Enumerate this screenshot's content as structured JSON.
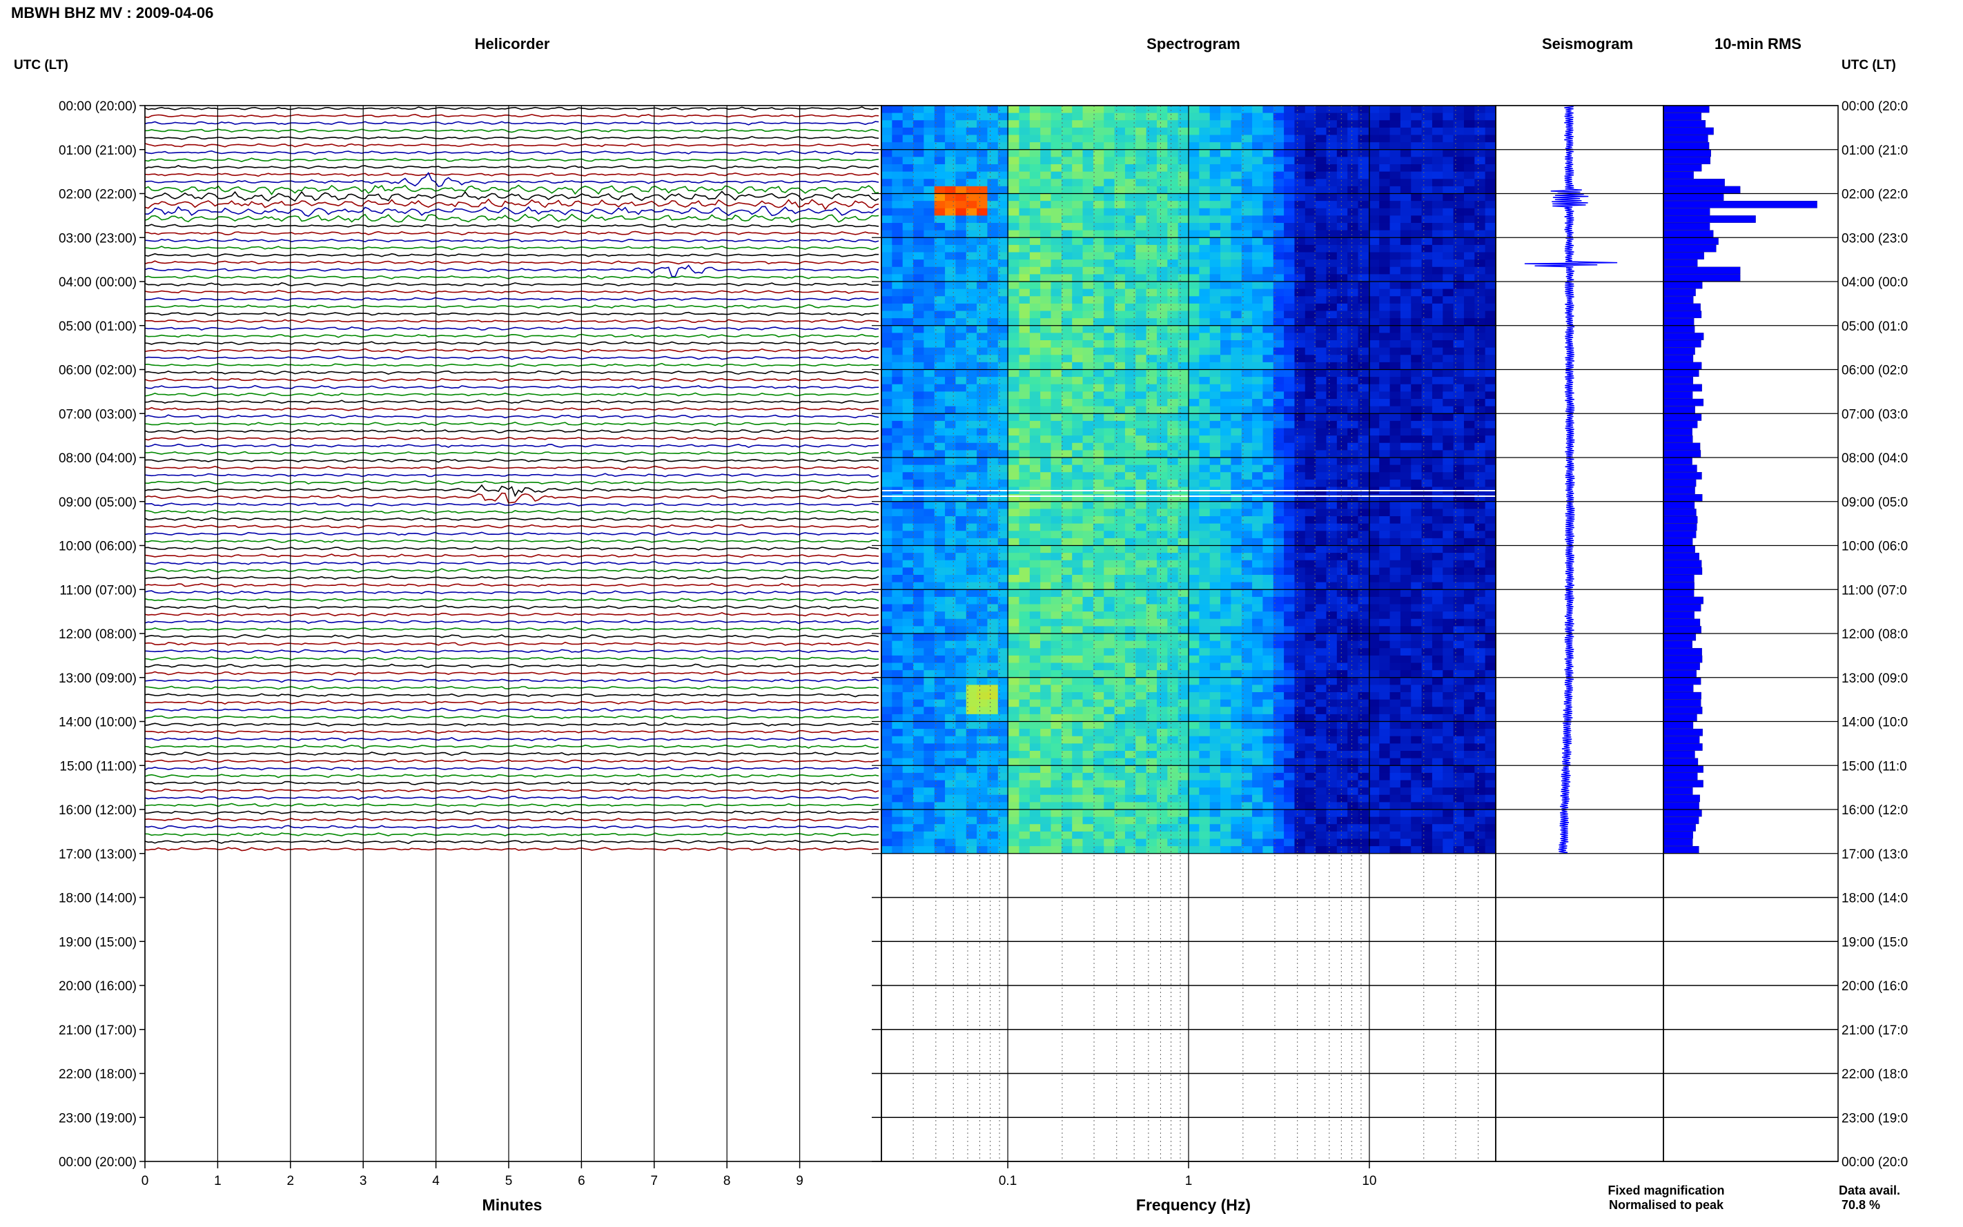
{
  "title": "MBWH BHZ MV : 2009-04-06",
  "panels": {
    "helicorder": "Helicorder",
    "spectrogram": "Spectrogram",
    "seismogram": "Seismogram",
    "rms": "10-min RMS"
  },
  "time_axis_header": "UTC (LT)",
  "time_labels": [
    "00:00 (20:00)",
    "01:00 (21:00)",
    "02:00 (22:00)",
    "03:00 (23:00)",
    "04:00 (00:00)",
    "05:00 (01:00)",
    "06:00 (02:00)",
    "07:00 (03:00)",
    "08:00 (04:00)",
    "09:00 (05:00)",
    "10:00 (06:00)",
    "11:00 (07:00)",
    "12:00 (08:00)",
    "13:00 (09:00)",
    "14:00 (10:00)",
    "15:00 (11:00)",
    "16:00 (12:00)",
    "17:00 (13:00)",
    "18:00 (14:00)",
    "19:00 (15:00)",
    "20:00 (16:00)",
    "21:00 (17:00)",
    "22:00 (18:00)",
    "23:00 (19:00)",
    "00:00 (20:00)"
  ],
  "right_time_labels": [
    "00:00 (20:0",
    "01:00 (21:0",
    "02:00 (22:0",
    "03:00 (23:0",
    "04:00 (00:0",
    "05:00 (01:0",
    "06:00 (02:0",
    "07:00 (03:0",
    "08:00 (04:0",
    "09:00 (05:0",
    "10:00 (06:0",
    "11:00 (07:0",
    "12:00 (08:0",
    "13:00 (09:0",
    "14:00 (10:0",
    "15:00 (11:0",
    "16:00 (12:0",
    "17:00 (13:0",
    "18:00 (14:0",
    "19:00 (15:0",
    "20:00 (16:0",
    "21:00 (17:0",
    "22:00 (18:0",
    "23:00 (19:0",
    "00:00 (20:0"
  ],
  "x_minutes_label": "Minutes",
  "x_minutes_ticks": [
    "0",
    "1",
    "2",
    "3",
    "4",
    "5",
    "6",
    "7",
    "8",
    "9"
  ],
  "x_freq_label": "Frequency (Hz)",
  "x_freq_ticks": [
    "0.1",
    "1",
    "10"
  ],
  "legend": {
    "fixed": "Fixed magnification",
    "normalised": "Normalised to peak",
    "fixed_color": "#0000ff",
    "normalised_color": "#ff0000"
  },
  "data_avail_label": "Data avail.",
  "data_avail_value": "70.8 %",
  "colors": {
    "trace_cycle": [
      "#000000",
      "#990000",
      "#0000aa",
      "#008800"
    ],
    "spectrogram_low": "#00008f",
    "spectrogram_high": "#ff3000",
    "rms_bar": "#0000ff"
  },
  "chart_data": [
    {
      "type": "line",
      "title": "Helicorder",
      "xlabel": "Minutes",
      "xlim": [
        0,
        10
      ],
      "ylim_hours": [
        0,
        24
      ],
      "data_end_hour": 17,
      "lines_per_hour": 6,
      "events": [
        {
          "hour": 1.65,
          "minute": 3.9,
          "label": ""
        },
        {
          "hour": 3.6,
          "minute": 7.3,
          "label": ""
        },
        {
          "hour": 8.75,
          "minute": 5.0,
          "label": ""
        }
      ]
    },
    {
      "type": "heatmap",
      "title": "Spectrogram",
      "xlabel": "Frequency (Hz)",
      "xscale": "log",
      "xlim": [
        0.02,
        50
      ],
      "ylim_hours": [
        0,
        17
      ],
      "hot_spots": [
        {
          "hour": 2.1,
          "freq_from": 0.04,
          "freq_to": 0.08,
          "level": 1.0
        },
        {
          "hour": 13.4,
          "freq_from": 0.06,
          "freq_to": 0.09,
          "level": 0.8
        }
      ]
    },
    {
      "type": "line",
      "title": "Seismogram",
      "ylim_hours": [
        0,
        17
      ],
      "baseline_drift": [
        [
          0,
          0.47
        ],
        [
          4,
          0.49
        ],
        [
          9,
          0.5
        ],
        [
          13,
          0.48
        ],
        [
          17,
          0.32
        ]
      ]
    },
    {
      "type": "bar",
      "title": "10-min RMS",
      "ylim_hours": [
        0,
        17
      ],
      "bin_minutes": 10,
      "peaks": [
        {
          "hour": 1.9,
          "value": 0.5
        },
        {
          "hour": 2.2,
          "value": 1.0
        },
        {
          "hour": 2.45,
          "value": 0.6
        },
        {
          "hour": 3.75,
          "value": 0.5
        }
      ],
      "baseline_value": 0.22
    }
  ]
}
